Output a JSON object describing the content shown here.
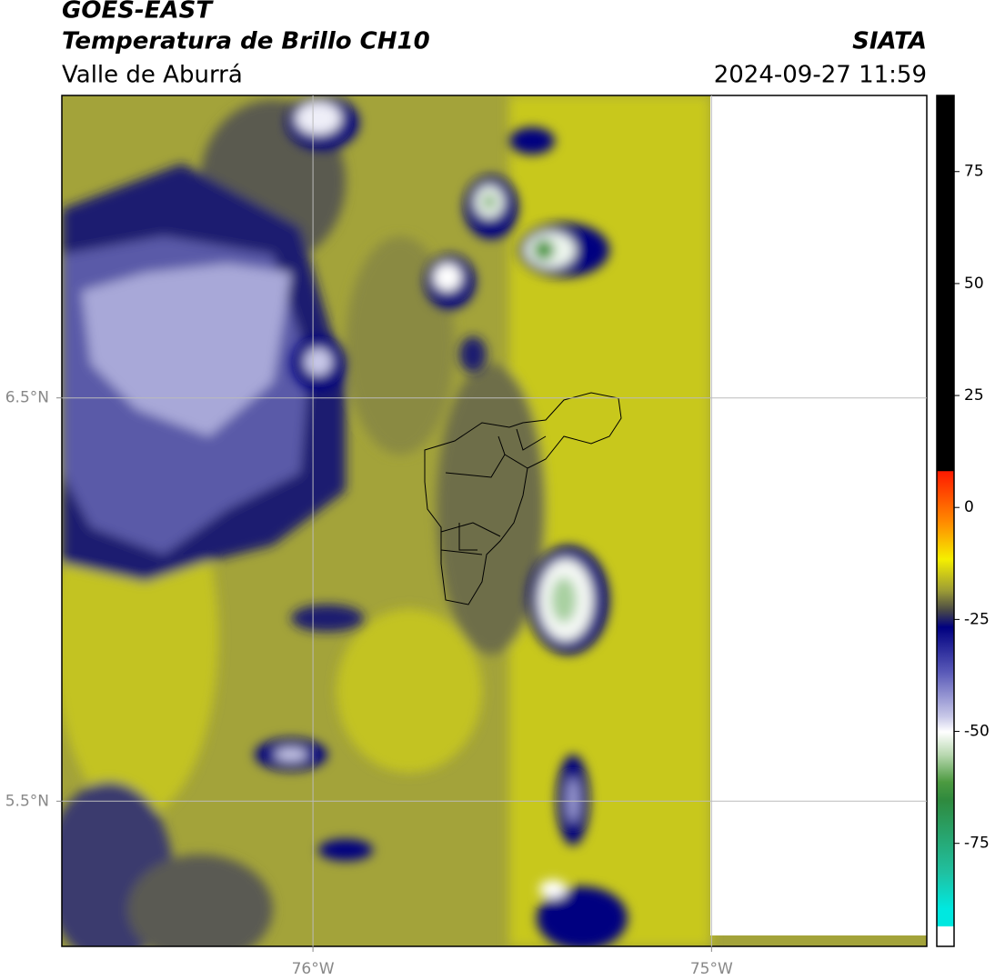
{
  "header": {
    "line1": "GOES-EAST",
    "line2": "Temperatura de Brillo CH10",
    "region": "Valle de Aburrá",
    "source": "SIATA",
    "datetime": "2024-09-27 11:59"
  },
  "map": {
    "xlim": [
      -76.63,
      -74.46
    ],
    "ylim": [
      5.14,
      7.25
    ],
    "xticks": [
      {
        "value": -76,
        "label": "76°W"
      },
      {
        "value": -75,
        "label": "75°W"
      }
    ],
    "yticks": [
      {
        "value": 6.5,
        "label": "6.5°N"
      },
      {
        "value": 5.5,
        "label": "5.5°N"
      }
    ]
  },
  "colorbar": {
    "lim": [
      -98,
      92
    ],
    "ticks": [
      75,
      50,
      25,
      0,
      -25,
      -50,
      -75
    ]
  }
}
